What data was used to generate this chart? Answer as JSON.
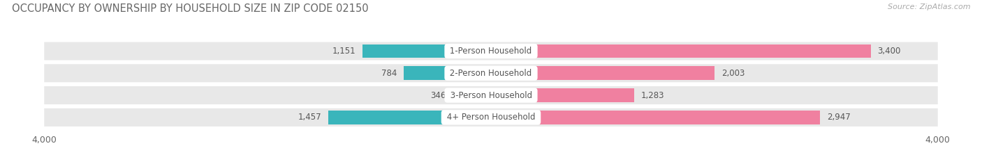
{
  "title": "OCCUPANCY BY OWNERSHIP BY HOUSEHOLD SIZE IN ZIP CODE 02150",
  "source": "Source: ZipAtlas.com",
  "categories": [
    "1-Person Household",
    "2-Person Household",
    "3-Person Household",
    "4+ Person Household"
  ],
  "owner_values": [
    1151,
    784,
    346,
    1457
  ],
  "renter_values": [
    3400,
    2003,
    1283,
    2947
  ],
  "owner_color": "#3ab5bb",
  "renter_color": "#f080a0",
  "bar_bg_color": "#e8e8e8",
  "background_color": "#ffffff",
  "xlim": 4000,
  "title_fontsize": 10.5,
  "label_fontsize": 8.5,
  "tick_fontsize": 9,
  "source_fontsize": 8,
  "legend_fontsize": 9,
  "center_label_color": "#555555",
  "value_label_color": "#555555"
}
